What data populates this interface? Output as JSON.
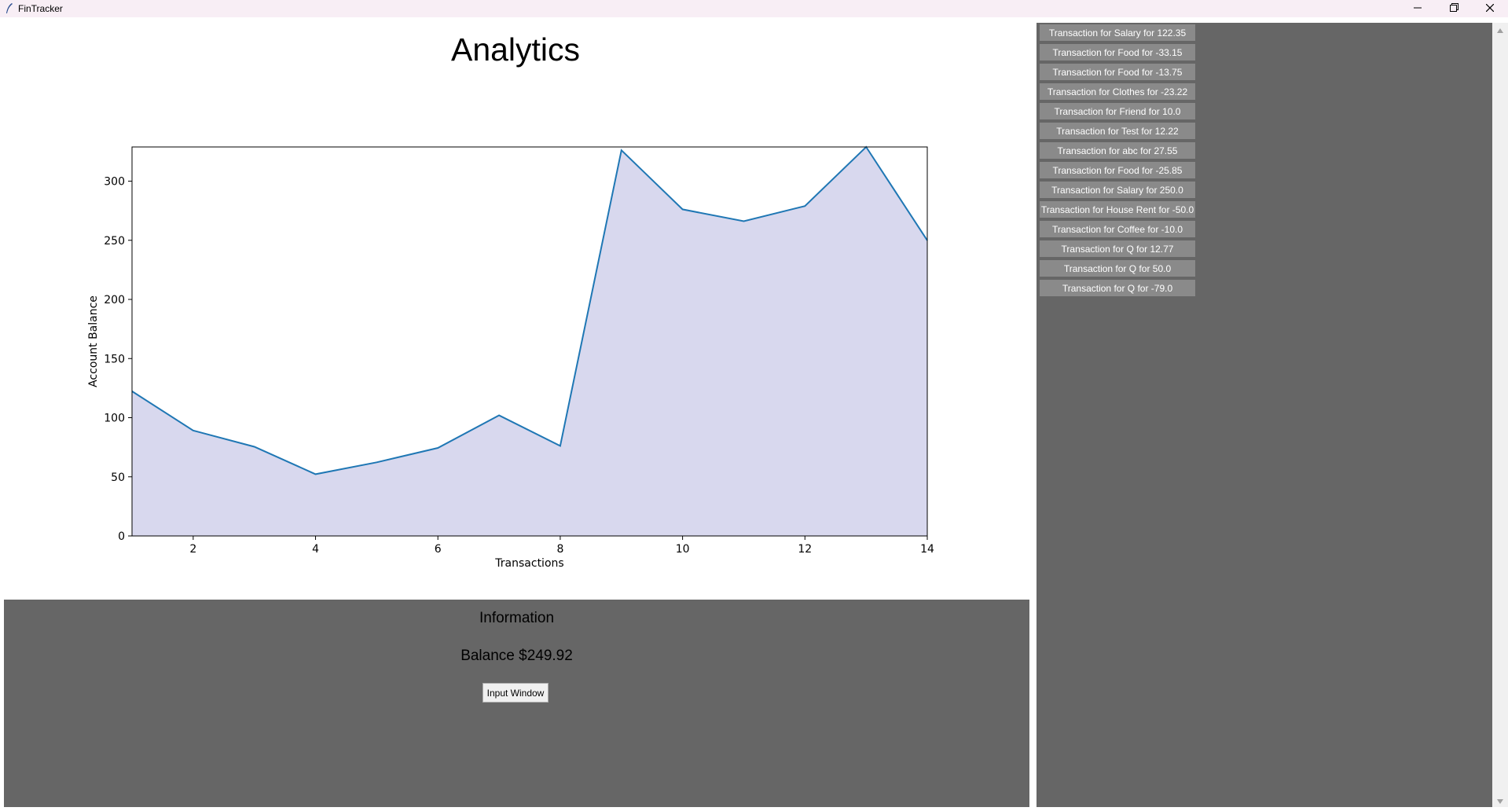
{
  "window": {
    "title": "FinTracker",
    "accent_color": "#f8eef5"
  },
  "main": {
    "heading": "Analytics"
  },
  "chart_data": {
    "type": "area",
    "title": "",
    "xlabel": "Transactions",
    "ylabel": "Account Balance",
    "x": [
      1,
      2,
      3,
      4,
      5,
      6,
      7,
      8,
      9,
      10,
      11,
      12,
      13,
      14
    ],
    "series": [
      {
        "values": [
          122.35,
          89.2,
          75.45,
          52.23,
          62.23,
          74.45,
          102.0,
          76.15,
          326.15,
          276.15,
          266.15,
          278.92,
          328.92,
          249.92
        ]
      }
    ],
    "xlim": [
      1,
      14
    ],
    "ylim": [
      0,
      328.92
    ],
    "xticks": [
      2,
      4,
      6,
      8,
      10,
      12,
      14
    ],
    "yticks": [
      0,
      50,
      100,
      150,
      200,
      250,
      300
    ],
    "line_color": "#1f77b4",
    "fill_color": "#d8d8ee",
    "grid": false,
    "legend": "none"
  },
  "info": {
    "title": "Information",
    "balance": "Balance $249.92",
    "input_button": "Input Window",
    "panel_color": "#666666"
  },
  "transactions": [
    "Transaction for Salary for 122.35",
    "Transaction for Food for -33.15",
    "Transaction for Food for -13.75",
    "Transaction for Clothes for -23.22",
    "Transaction for Friend for 10.0",
    "Transaction for Test for 12.22",
    "Transaction for abc for 27.55",
    "Transaction for Food for -25.85",
    "Transaction for Salary for 250.0",
    "Transaction for House Rent for -50.0",
    "Transaction for Coffee for -10.0",
    "Transaction for Q for 12.77",
    "Transaction for Q for 50.0",
    "Transaction for Q for -79.0"
  ]
}
